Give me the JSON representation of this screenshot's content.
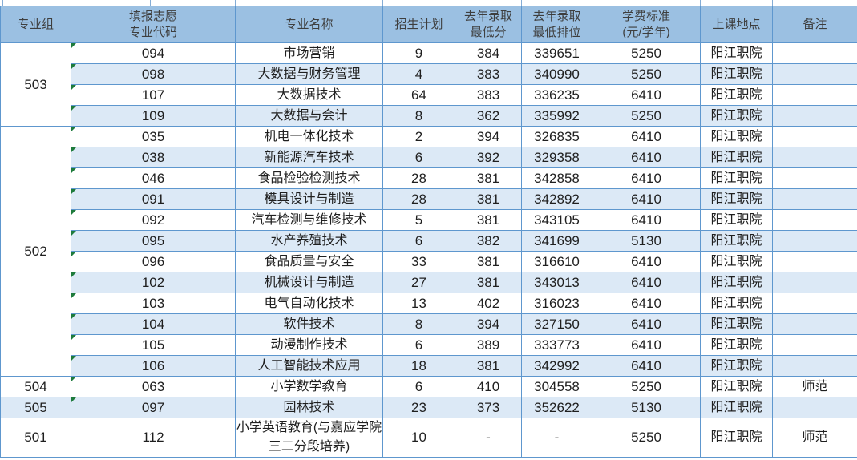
{
  "colors": {
    "header_bg": "#9BC0E2",
    "stripe_bg": "#DCE9F6",
    "border_blue": "#5E97CE",
    "header_text": "#3E3E3E",
    "cell_text": "#1F1F1F",
    "flag_green": "#1E7B3C"
  },
  "table": {
    "headers": [
      {
        "label": "专业组"
      },
      {
        "label": "填报志愿\n专业代码"
      },
      {
        "label": "专业名称"
      },
      {
        "label": "招生计划"
      },
      {
        "label": "去年录取\n最低分"
      },
      {
        "label": "去年录取\n最低排位"
      },
      {
        "label": "学费标准\n(元/学年)"
      },
      {
        "label": "上课地点"
      },
      {
        "label": "备注"
      }
    ],
    "groups": [
      {
        "group": "503",
        "rows": [
          {
            "code": "094",
            "name": "市场营销",
            "plan": "9",
            "min_score": "384",
            "min_rank": "339651",
            "tuition": "5250",
            "location": "阳江职院",
            "remark": "",
            "flagged": true
          },
          {
            "code": "098",
            "name": "大数据与财务管理",
            "plan": "4",
            "min_score": "383",
            "min_rank": "340990",
            "tuition": "5250",
            "location": "阳江职院",
            "remark": "",
            "flagged": true
          },
          {
            "code": "107",
            "name": "大数据技术",
            "plan": "64",
            "min_score": "383",
            "min_rank": "336235",
            "tuition": "6410",
            "location": "阳江职院",
            "remark": "",
            "flagged": true
          },
          {
            "code": "109",
            "name": "大数据与会计",
            "plan": "8",
            "min_score": "362",
            "min_rank": "335992",
            "tuition": "5250",
            "location": "阳江职院",
            "remark": "",
            "flagged": true
          }
        ]
      },
      {
        "group": "502",
        "rows": [
          {
            "code": "035",
            "name": "机电一体化技术",
            "plan": "2",
            "min_score": "394",
            "min_rank": "326835",
            "tuition": "6410",
            "location": "阳江职院",
            "remark": "",
            "flagged": true
          },
          {
            "code": "038",
            "name": "新能源汽车技术",
            "plan": "6",
            "min_score": "392",
            "min_rank": "329358",
            "tuition": "6410",
            "location": "阳江职院",
            "remark": "",
            "flagged": true
          },
          {
            "code": "046",
            "name": "食品检验检测技术",
            "plan": "28",
            "min_score": "381",
            "min_rank": "342858",
            "tuition": "6410",
            "location": "阳江职院",
            "remark": "",
            "flagged": true
          },
          {
            "code": "091",
            "name": "模具设计与制造",
            "plan": "28",
            "min_score": "381",
            "min_rank": "342892",
            "tuition": "6410",
            "location": "阳江职院",
            "remark": "",
            "flagged": true
          },
          {
            "code": "092",
            "name": "汽车检测与维修技术",
            "plan": "5",
            "min_score": "381",
            "min_rank": "343105",
            "tuition": "6410",
            "location": "阳江职院",
            "remark": "",
            "flagged": true
          },
          {
            "code": "095",
            "name": "水产养殖技术",
            "plan": "6",
            "min_score": "382",
            "min_rank": "341699",
            "tuition": "5130",
            "location": "阳江职院",
            "remark": "",
            "flagged": true
          },
          {
            "code": "096",
            "name": "食品质量与安全",
            "plan": "33",
            "min_score": "381",
            "min_rank": "316610",
            "tuition": "6410",
            "location": "阳江职院",
            "remark": "",
            "flagged": true
          },
          {
            "code": "102",
            "name": "机械设计与制造",
            "plan": "27",
            "min_score": "381",
            "min_rank": "343013",
            "tuition": "6410",
            "location": "阳江职院",
            "remark": "",
            "flagged": true
          },
          {
            "code": "103",
            "name": "电气自动化技术",
            "plan": "13",
            "min_score": "402",
            "min_rank": "316023",
            "tuition": "6410",
            "location": "阳江职院",
            "remark": "",
            "flagged": true
          },
          {
            "code": "104",
            "name": "软件技术",
            "plan": "8",
            "min_score": "394",
            "min_rank": "327150",
            "tuition": "6410",
            "location": "阳江职院",
            "remark": "",
            "flagged": true
          },
          {
            "code": "105",
            "name": "动漫制作技术",
            "plan": "6",
            "min_score": "389",
            "min_rank": "333773",
            "tuition": "6410",
            "location": "阳江职院",
            "remark": "",
            "flagged": true
          },
          {
            "code": "106",
            "name": "人工智能技术应用",
            "plan": "18",
            "min_score": "381",
            "min_rank": "342992",
            "tuition": "6410",
            "location": "阳江职院",
            "remark": "",
            "flagged": true
          }
        ]
      },
      {
        "group": "504",
        "rows": [
          {
            "code": "063",
            "name": "小学数学教育",
            "plan": "6",
            "min_score": "410",
            "min_rank": "304558",
            "tuition": "5250",
            "location": "阳江职院",
            "remark": "师范",
            "flagged": true
          }
        ]
      },
      {
        "group": "505",
        "rows": [
          {
            "code": "097",
            "name": "园林技术",
            "plan": "23",
            "min_score": "373",
            "min_rank": "352622",
            "tuition": "5130",
            "location": "阳江职院",
            "remark": "",
            "flagged": true
          }
        ]
      },
      {
        "group": "501",
        "rows": [
          {
            "code": "112",
            "name": "小学英语教育(与嘉应学院三二分段培养)",
            "plan": "10",
            "min_score": "-",
            "min_rank": "-",
            "tuition": "5250",
            "location": "阳江职院",
            "remark": "师范",
            "flagged": false
          }
        ]
      }
    ]
  }
}
